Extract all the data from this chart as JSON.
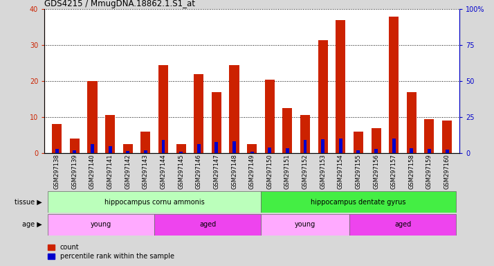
{
  "title": "GDS4215 / MmugDNA.18862.1.S1_at",
  "samples": [
    "GSM297138",
    "GSM297139",
    "GSM297140",
    "GSM297141",
    "GSM297142",
    "GSM297143",
    "GSM297144",
    "GSM297145",
    "GSM297146",
    "GSM297147",
    "GSM297148",
    "GSM297149",
    "GSM297150",
    "GSM297151",
    "GSM297152",
    "GSM297153",
    "GSM297154",
    "GSM297155",
    "GSM297156",
    "GSM297157",
    "GSM297158",
    "GSM297159",
    "GSM297160"
  ],
  "counts": [
    8,
    4,
    20,
    10.5,
    2.5,
    6,
    24.5,
    2.5,
    22,
    17,
    24.5,
    2.5,
    20.5,
    12.5,
    10.5,
    31.5,
    37,
    6,
    7,
    38,
    17,
    9.5,
    9
  ],
  "percentile": [
    3,
    2,
    6,
    4.5,
    1.5,
    2,
    9,
    1,
    6,
    7.5,
    8,
    1,
    4,
    3.5,
    9,
    9.5,
    10,
    2,
    3,
    10,
    3.5,
    3,
    2.5
  ],
  "count_color": "#cc2200",
  "percentile_color": "#0000cc",
  "bar_width": 0.55,
  "ylim_left": [
    0,
    40
  ],
  "ylim_right": [
    0,
    100
  ],
  "yticks_left": [
    0,
    10,
    20,
    30,
    40
  ],
  "yticks_right": [
    0,
    25,
    50,
    75,
    100
  ],
  "ytick_labels_right": [
    "0",
    "25",
    "50",
    "75",
    "100%"
  ],
  "bg_color": "#d8d8d8",
  "plot_bg": "#ffffff",
  "tissue_row": [
    {
      "label": "hippocampus cornu ammonis",
      "start": 0,
      "end": 11,
      "color": "#bbffbb"
    },
    {
      "label": "hippocampus dentate gyrus",
      "start": 12,
      "end": 22,
      "color": "#44ee44"
    }
  ],
  "age_row": [
    {
      "label": "young",
      "start": 0,
      "end": 5,
      "color": "#ffaaff"
    },
    {
      "label": "aged",
      "start": 6,
      "end": 11,
      "color": "#ee44ee"
    },
    {
      "label": "young",
      "start": 12,
      "end": 16,
      "color": "#ffaaff"
    },
    {
      "label": "aged",
      "start": 17,
      "end": 22,
      "color": "#ee44ee"
    }
  ],
  "legend_count_label": "count",
  "legend_pct_label": "percentile rank within the sample",
  "grid_color": "#000000",
  "axis_left_color": "#cc2200",
  "axis_right_color": "#0000cc"
}
